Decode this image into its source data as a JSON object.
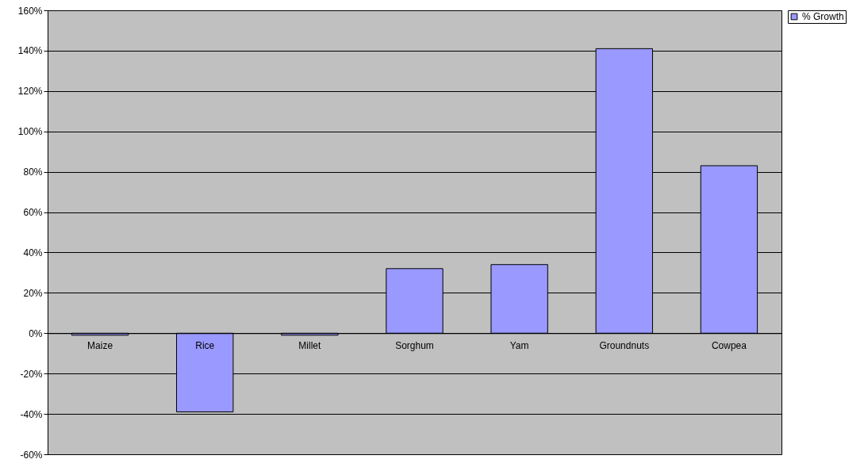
{
  "chart_data": {
    "type": "bar",
    "categories": [
      "Maize",
      "Rice",
      "Millet",
      "Sorghum",
      "Yam",
      "Groundnuts",
      "Cowpea"
    ],
    "series": [
      {
        "name": "% Growth",
        "color": "#9999ff",
        "values": [
          -1,
          -39,
          -1,
          32,
          34,
          141,
          83
        ]
      }
    ],
    "ylim": [
      -60,
      160
    ],
    "yticks": [
      {
        "value": -60,
        "label": "-60%"
      },
      {
        "value": -40,
        "label": "-40%"
      },
      {
        "value": -20,
        "label": "-20%"
      },
      {
        "value": 0,
        "label": "0%"
      },
      {
        "value": 20,
        "label": "20%"
      },
      {
        "value": 40,
        "label": "40%"
      },
      {
        "value": 60,
        "label": "60%"
      },
      {
        "value": 80,
        "label": "80%"
      },
      {
        "value": 100,
        "label": "100%"
      },
      {
        "value": 120,
        "label": "120%"
      },
      {
        "value": 140,
        "label": "140%"
      },
      {
        "value": 160,
        "label": "160%"
      }
    ],
    "grid": "y",
    "legend": "right"
  }
}
